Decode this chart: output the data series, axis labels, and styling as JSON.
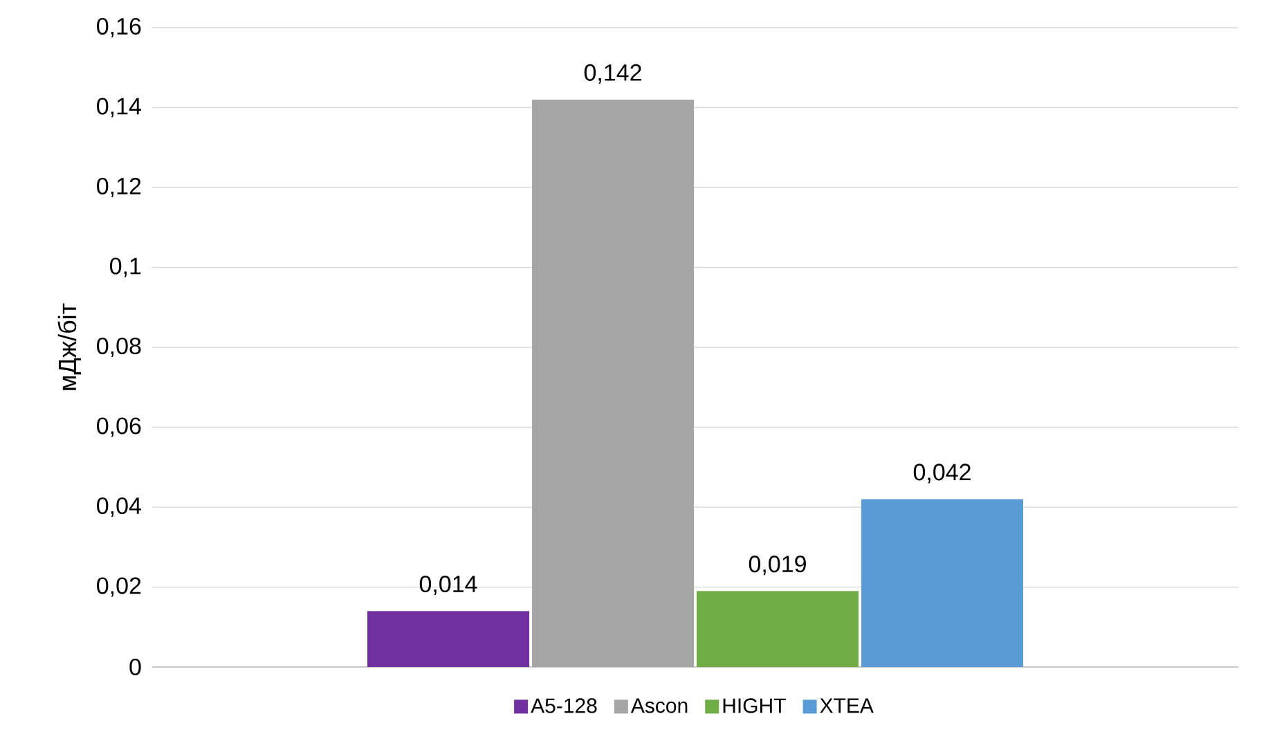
{
  "chart_data": {
    "type": "bar",
    "ylabel": "мДж/біт",
    "categories": [
      null
    ],
    "series": [
      {
        "name": "A5-128",
        "color": "#7030a0",
        "values": [
          0.014
        ],
        "value_labels": [
          "0,014"
        ]
      },
      {
        "name": "Ascon",
        "color": "#a5a5a5",
        "values": [
          0.142
        ],
        "value_labels": [
          "0,142"
        ]
      },
      {
        "name": "HIGHT",
        "color": "#70ad47",
        "values": [
          0.019
        ],
        "value_labels": [
          "0,019"
        ]
      },
      {
        "name": "XTEA",
        "color": "#5b9bd5",
        "values": [
          0.042
        ],
        "value_labels": [
          "0,042"
        ]
      }
    ],
    "ylim": [
      0,
      0.16
    ],
    "yticks": [
      0,
      {
        "value": 0.02,
        "label": "0,02"
      },
      {
        "value": 0.04,
        "label": "0,04"
      },
      {
        "value": 0.06,
        "label": "0,06"
      },
      {
        "value": 0.08,
        "label": "0,08"
      },
      {
        "value": 0.1,
        "label": "0,1"
      },
      {
        "value": 0.12,
        "label": "0,12"
      },
      {
        "value": 0.14,
        "label": "0,14"
      },
      {
        "value": 0.16,
        "label": "0,16"
      }
    ],
    "grid": "y",
    "legend": "bottom"
  }
}
